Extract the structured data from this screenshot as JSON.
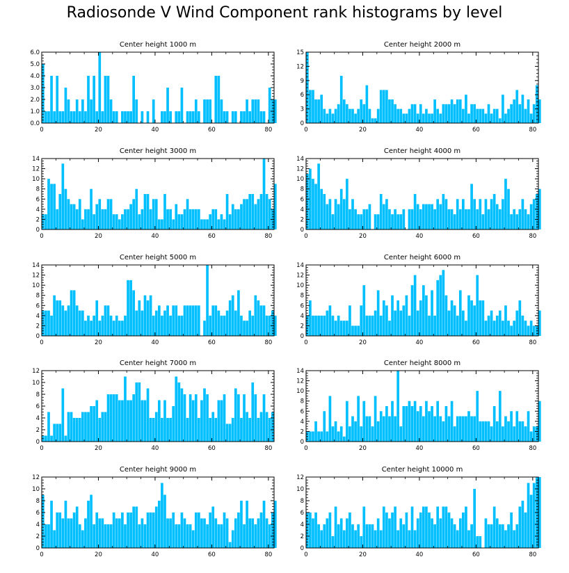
{
  "title": "Radiosonde V Wind Component rank histograms by level",
  "colors": {
    "bar": "#00BFFF",
    "bar_edge": "#ffffff",
    "axis": "#000000"
  },
  "chart_data": [
    {
      "type": "bar",
      "title": "Center height 1000 m",
      "xlim": [
        0,
        82
      ],
      "ylim": [
        0,
        6
      ],
      "x_ticks": [
        0,
        20,
        40,
        60,
        80
      ],
      "y_ticks": [
        0,
        1,
        2,
        3,
        4,
        5,
        6
      ],
      "y_tick_labels": [
        "0.0",
        "1.0",
        "2.0",
        "3.0",
        "4.0",
        "5.0",
        "6.0"
      ],
      "values": [
        5,
        1,
        1,
        4,
        1,
        4,
        1,
        1,
        3,
        2,
        1,
        1,
        2,
        1,
        2,
        1,
        4,
        2,
        4,
        1,
        6,
        1,
        4,
        4,
        2,
        1,
        1,
        0,
        1,
        1,
        1,
        1,
        4,
        2,
        0,
        1,
        0,
        1,
        0,
        2,
        0,
        0,
        1,
        1,
        3,
        1,
        0,
        1,
        1,
        3,
        0,
        1,
        1,
        1,
        2,
        1,
        0,
        2,
        2,
        2,
        0,
        4,
        4,
        2,
        1,
        1,
        0,
        1,
        1,
        0,
        1,
        1,
        2,
        1,
        2,
        2,
        2,
        1,
        1,
        0,
        3,
        2,
        2
      ]
    },
    {
      "type": "bar",
      "title": "Center height 2000 m",
      "xlim": [
        0,
        82
      ],
      "ylim": [
        0,
        15
      ],
      "x_ticks": [
        0,
        20,
        40,
        60,
        80
      ],
      "y_ticks": [
        0,
        3,
        6,
        9,
        12,
        15
      ],
      "y_tick_labels": [
        "0",
        "3",
        "6",
        "9",
        "12",
        "15"
      ],
      "values": [
        15,
        7,
        7,
        5,
        5,
        6,
        3,
        2,
        3,
        2,
        3,
        4,
        10,
        5,
        4,
        3,
        3,
        2,
        3,
        5,
        4,
        8,
        3,
        1,
        1,
        3,
        7,
        7,
        7,
        5,
        5,
        4,
        3,
        3,
        2,
        2,
        3,
        4,
        4,
        2,
        4,
        2,
        3,
        2,
        2,
        5,
        3,
        2,
        4,
        4,
        4,
        5,
        4,
        5,
        5,
        3,
        6,
        2,
        4,
        4,
        3,
        3,
        3,
        2,
        4,
        2,
        3,
        3,
        1,
        6,
        2,
        3,
        4,
        5,
        7,
        4,
        6,
        3,
        5,
        2,
        4,
        8,
        5
      ]
    },
    {
      "type": "bar",
      "title": "Center height 3000 m",
      "xlim": [
        0,
        82
      ],
      "ylim": [
        0,
        14
      ],
      "x_ticks": [
        0,
        20,
        40,
        60,
        80
      ],
      "y_ticks": [
        0,
        2,
        4,
        6,
        8,
        10,
        12,
        14
      ],
      "y_tick_labels": [
        "0",
        "2",
        "4",
        "6",
        "8",
        "10",
        "12",
        "14"
      ],
      "values": [
        3,
        3,
        10,
        9,
        9,
        4,
        7,
        13,
        8,
        6,
        5,
        5,
        4,
        6,
        2,
        4,
        4,
        8,
        3,
        5,
        6,
        4,
        4,
        6,
        6,
        3,
        3,
        2,
        3,
        4,
        4,
        5,
        6,
        8,
        3,
        4,
        7,
        7,
        4,
        6,
        6,
        2,
        2,
        7,
        4,
        4,
        2,
        5,
        3,
        3,
        4,
        6,
        4,
        4,
        4,
        4,
        2,
        2,
        2,
        3,
        4,
        4,
        2,
        3,
        2,
        7,
        3,
        5,
        4,
        4,
        5,
        6,
        6,
        7,
        7,
        5,
        6,
        7,
        14,
        7,
        6,
        4,
        9
      ]
    },
    {
      "type": "bar",
      "title": "Center height 4000 m",
      "xlim": [
        0,
        82
      ],
      "ylim": [
        0,
        14
      ],
      "x_ticks": [
        0,
        20,
        40,
        60,
        80
      ],
      "y_ticks": [
        0,
        2,
        4,
        6,
        8,
        10,
        12,
        14
      ],
      "y_tick_labels": [
        "0",
        "2",
        "4",
        "6",
        "8",
        "10",
        "12",
        "14"
      ],
      "values": [
        11,
        12,
        10,
        9,
        13,
        8,
        7,
        5,
        6,
        3,
        6,
        5,
        8,
        6,
        10,
        4,
        6,
        4,
        3,
        3,
        4,
        4,
        5,
        0,
        3,
        3,
        7,
        5,
        6,
        4,
        3,
        4,
        3,
        3,
        4,
        0,
        4,
        4,
        7,
        5,
        4,
        5,
        5,
        5,
        5,
        4,
        6,
        5,
        7,
        6,
        4,
        4,
        3,
        6,
        4,
        6,
        4,
        4,
        9,
        6,
        4,
        6,
        3,
        6,
        4,
        6,
        7,
        5,
        4,
        6,
        10,
        8,
        3,
        4,
        3,
        4,
        6,
        4,
        3,
        5,
        6,
        7,
        8
      ]
    },
    {
      "type": "bar",
      "title": "Center height 5000 m",
      "xlim": [
        0,
        82
      ],
      "ylim": [
        0,
        14
      ],
      "x_ticks": [
        0,
        20,
        40,
        60,
        80
      ],
      "y_ticks": [
        0,
        2,
        4,
        6,
        8,
        10,
        12,
        14
      ],
      "y_tick_labels": [
        "0",
        "2",
        "4",
        "6",
        "8",
        "10",
        "12",
        "14"
      ],
      "values": [
        5,
        5,
        5,
        4,
        8,
        7,
        7,
        6,
        5,
        6,
        9,
        9,
        6,
        5,
        5,
        3,
        4,
        3,
        4,
        7,
        3,
        4,
        6,
        6,
        4,
        3,
        4,
        3,
        3,
        4,
        11,
        11,
        9,
        5,
        7,
        5,
        8,
        7,
        8,
        4,
        5,
        6,
        4,
        5,
        6,
        4,
        6,
        6,
        4,
        4,
        6,
        6,
        6,
        6,
        6,
        6,
        0,
        3,
        14,
        4,
        6,
        6,
        5,
        4,
        4,
        5,
        7,
        8,
        5,
        9,
        4,
        3,
        3,
        5,
        4,
        8,
        7,
        6,
        6,
        4,
        4,
        5,
        4
      ]
    },
    {
      "type": "bar",
      "title": "Center height 6000 m",
      "xlim": [
        0,
        82
      ],
      "ylim": [
        0,
        14
      ],
      "x_ticks": [
        0,
        20,
        40,
        60,
        80
      ],
      "y_ticks": [
        0,
        2,
        4,
        6,
        8,
        10,
        12,
        14
      ],
      "y_tick_labels": [
        "0",
        "2",
        "4",
        "6",
        "8",
        "10",
        "12",
        "14"
      ],
      "values": [
        4,
        7,
        4,
        4,
        4,
        4,
        4,
        5,
        6,
        4,
        3,
        4,
        3,
        3,
        3,
        6,
        2,
        2,
        2,
        6,
        10,
        4,
        4,
        4,
        5,
        9,
        4,
        7,
        6,
        3,
        8,
        5,
        7,
        5,
        6,
        8,
        4,
        10,
        12,
        5,
        7,
        10,
        8,
        4,
        9,
        4,
        11,
        12,
        13,
        8,
        5,
        7,
        6,
        4,
        9,
        5,
        3,
        8,
        7,
        6,
        12,
        7,
        7,
        3,
        4,
        5,
        3,
        4,
        5,
        3,
        6,
        3,
        2,
        3,
        5,
        7,
        4,
        3,
        2,
        3,
        2,
        2,
        5
      ]
    },
    {
      "type": "bar",
      "title": "Center height 7000 m",
      "xlim": [
        0,
        82
      ],
      "ylim": [
        0,
        12
      ],
      "x_ticks": [
        0,
        20,
        40,
        60,
        80
      ],
      "y_ticks": [
        0,
        2,
        4,
        6,
        8,
        10,
        12
      ],
      "y_tick_labels": [
        "0",
        "2",
        "4",
        "6",
        "8",
        "10",
        "12"
      ],
      "values": [
        1,
        1,
        5,
        1,
        3,
        3,
        3,
        9,
        1,
        5,
        5,
        4,
        4,
        4,
        5,
        5,
        5,
        6,
        6,
        7,
        4,
        5,
        5,
        8,
        8,
        8,
        8,
        7,
        7,
        11,
        7,
        7,
        8,
        10,
        10,
        7,
        7,
        9,
        4,
        4,
        5,
        7,
        4,
        7,
        4,
        4,
        6,
        11,
        10,
        9,
        8,
        4,
        8,
        7,
        8,
        4,
        7,
        9,
        8,
        4,
        5,
        4,
        7,
        7,
        8,
        3,
        3,
        4,
        9,
        8,
        4,
        8,
        5,
        4,
        10,
        8,
        4,
        5,
        8,
        5,
        4,
        5
      ]
    },
    {
      "type": "bar",
      "title": "Center height 8000 m",
      "xlim": [
        0,
        82
      ],
      "ylim": [
        0,
        14
      ],
      "x_ticks": [
        0,
        20,
        40,
        60,
        80
      ],
      "y_ticks": [
        0,
        2,
        4,
        6,
        8,
        10,
        12,
        14
      ],
      "y_tick_labels": [
        "0",
        "2",
        "4",
        "6",
        "8",
        "10",
        "12",
        "14"
      ],
      "values": [
        2,
        2,
        2,
        4,
        2,
        2,
        6,
        2,
        9,
        3,
        4,
        2,
        3,
        1,
        8,
        3,
        5,
        4,
        9,
        3,
        8,
        5,
        5,
        3,
        9,
        4,
        6,
        5,
        7,
        5,
        8,
        5,
        14,
        3,
        7,
        7,
        8,
        7,
        8,
        6,
        7,
        5,
        8,
        6,
        7,
        5,
        8,
        5,
        4,
        7,
        5,
        8,
        3,
        5,
        5,
        5,
        5,
        6,
        5,
        5,
        10,
        4,
        4,
        4,
        4,
        3,
        7,
        4,
        10,
        3,
        5,
        4,
        6,
        3,
        6,
        4,
        4,
        3,
        6,
        2,
        3,
        3,
        8
      ]
    },
    {
      "type": "bar",
      "title": "Center height 9000 m",
      "xlim": [
        0,
        82
      ],
      "ylim": [
        0,
        12
      ],
      "x_ticks": [
        0,
        20,
        40,
        60,
        80
      ],
      "y_ticks": [
        0,
        2,
        4,
        6,
        8,
        10,
        12
      ],
      "y_tick_labels": [
        "0",
        "2",
        "4",
        "6",
        "8",
        "10",
        "12"
      ],
      "values": [
        9,
        4,
        4,
        8,
        3,
        6,
        6,
        5,
        8,
        5,
        5,
        6,
        7,
        4,
        3,
        5,
        8,
        9,
        4,
        6,
        5,
        5,
        4,
        4,
        4,
        6,
        5,
        5,
        6,
        4,
        6,
        6,
        7,
        7,
        4,
        5,
        4,
        6,
        6,
        6,
        7,
        8,
        11,
        9,
        5,
        5,
        6,
        4,
        4,
        6,
        5,
        4,
        4,
        3,
        6,
        6,
        5,
        5,
        4,
        6,
        7,
        5,
        4,
        4,
        6,
        5,
        1,
        3,
        5,
        6,
        8,
        4,
        8,
        5,
        5,
        4,
        5,
        6,
        8,
        5,
        4,
        6,
        8
      ]
    },
    {
      "type": "bar",
      "title": "Center height 10000 m",
      "xlim": [
        0,
        82
      ],
      "ylim": [
        0,
        12
      ],
      "x_ticks": [
        0,
        20,
        40,
        60,
        80
      ],
      "y_ticks": [
        0,
        2,
        4,
        6,
        8,
        10,
        12
      ],
      "y_tick_labels": [
        "0",
        "2",
        "4",
        "6",
        "8",
        "10",
        "12"
      ],
      "values": [
        6,
        6,
        5,
        6,
        4,
        3,
        4,
        5,
        6,
        2,
        7,
        4,
        5,
        3,
        5,
        6,
        4,
        3,
        4,
        2,
        7,
        4,
        4,
        4,
        3,
        5,
        3,
        7,
        6,
        5,
        6,
        7,
        3,
        5,
        4,
        6,
        3,
        7,
        3,
        5,
        6,
        7,
        7,
        6,
        5,
        4,
        7,
        5,
        7,
        7,
        6,
        5,
        4,
        3,
        5,
        6,
        7,
        3,
        4,
        10,
        2,
        2,
        0,
        5,
        4,
        4,
        7,
        5,
        4,
        4,
        3,
        4,
        6,
        3,
        4,
        7,
        8,
        6,
        11,
        9,
        11,
        12,
        12
      ]
    }
  ]
}
